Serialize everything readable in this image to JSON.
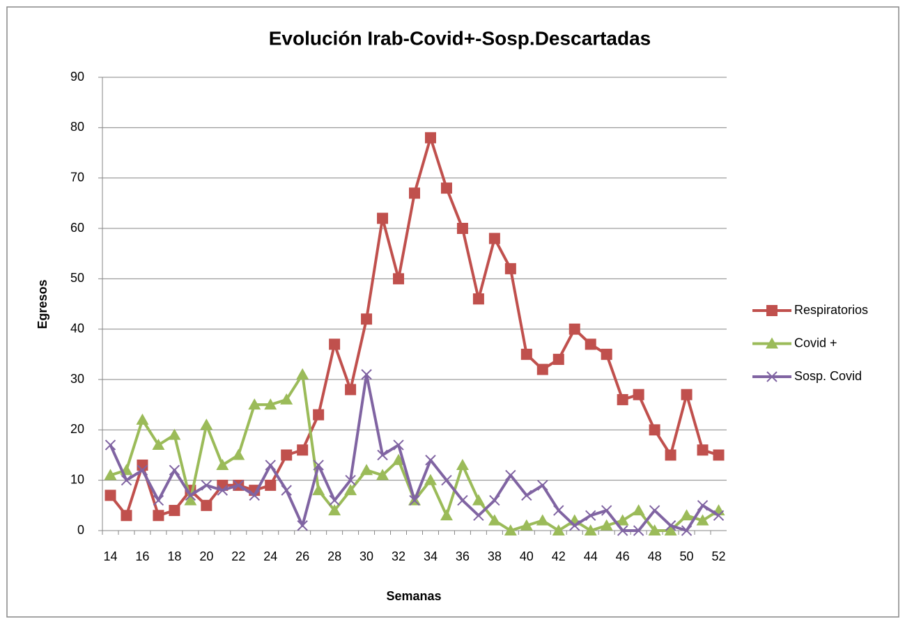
{
  "chart_data": {
    "type": "line",
    "title": "Evolución Irab-Covid+-Sosp.Descartadas",
    "x_label": "Semanas",
    "y_label": "Egresos",
    "categories": [
      "14",
      null,
      "16",
      null,
      "18",
      null,
      "20",
      null,
      "22",
      null,
      "24",
      null,
      "26",
      null,
      "28",
      null,
      "30",
      null,
      "32",
      null,
      "34",
      null,
      "36",
      null,
      "38",
      null,
      "40",
      null,
      "42",
      null,
      "44",
      null,
      "46",
      null,
      "48",
      null,
      "50",
      null,
      "52"
    ],
    "series": [
      {
        "name": "Respiratorios",
        "color": "#c0504d",
        "marker": "square",
        "values": [
          7,
          3,
          13,
          3,
          4,
          8,
          5,
          9,
          9,
          8,
          9,
          15,
          16,
          23,
          37,
          28,
          42,
          62,
          50,
          67,
          78,
          68,
          60,
          46,
          58,
          52,
          35,
          32,
          34,
          40,
          37,
          35,
          26,
          27,
          20,
          15,
          27,
          16,
          15
        ]
      },
      {
        "name": "Covid +",
        "color": "#9bbb59",
        "marker": "triangle",
        "values": [
          11,
          12,
          22,
          17,
          19,
          6,
          21,
          13,
          15,
          25,
          25,
          26,
          31,
          8,
          4,
          8,
          12,
          11,
          14,
          6,
          10,
          3,
          13,
          6,
          2,
          0,
          1,
          2,
          0,
          2,
          0,
          1,
          2,
          4,
          0,
          0,
          3,
          2,
          4
        ]
      },
      {
        "name": "Sosp. Covid",
        "color": "#8064a2",
        "marker": "x",
        "values": [
          17,
          10,
          12,
          6,
          12,
          7,
          9,
          8,
          9,
          7,
          13,
          8,
          1,
          13,
          6,
          10,
          31,
          15,
          17,
          6,
          14,
          10,
          6,
          3,
          6,
          11,
          7,
          9,
          4,
          1,
          3,
          4,
          0,
          0,
          4,
          1,
          0,
          5,
          3
        ]
      }
    ],
    "ylim": [
      0,
      90
    ],
    "yticks": [
      0,
      10,
      20,
      30,
      40,
      50,
      60,
      70,
      80,
      90
    ],
    "grid": true,
    "legend": "right"
  }
}
